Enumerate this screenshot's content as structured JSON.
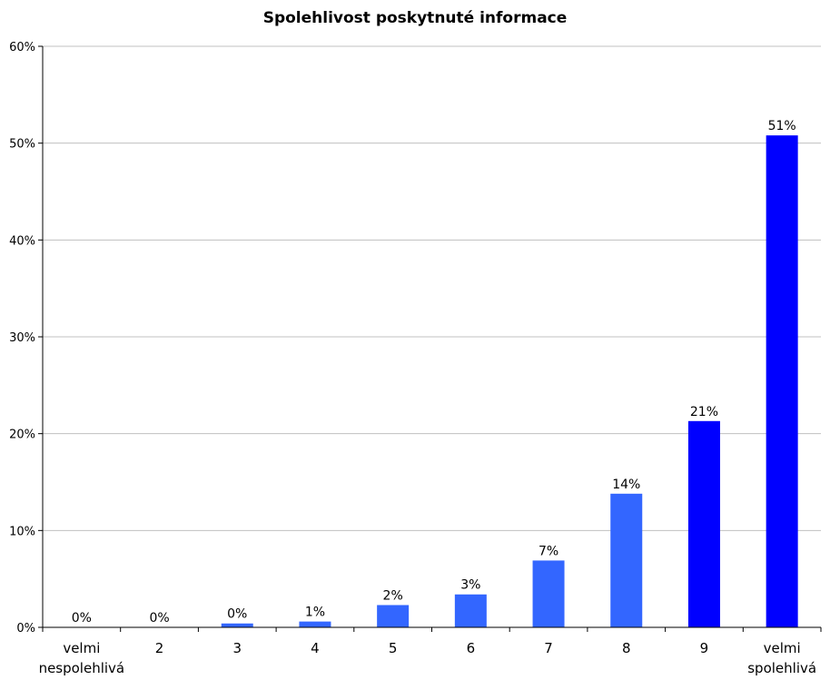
{
  "chart_data": {
    "type": "bar",
    "title": "Spolehlivost poskytnuté informace",
    "xlabel": "",
    "ylabel": "",
    "categories": [
      [
        "velmi",
        "nespolehlivá"
      ],
      [
        "2"
      ],
      [
        "3"
      ],
      [
        "4"
      ],
      [
        "5"
      ],
      [
        "6"
      ],
      [
        "7"
      ],
      [
        "8"
      ],
      [
        "9"
      ],
      [
        "velmi",
        "spolehlivá"
      ]
    ],
    "values": [
      0,
      0,
      0.4,
      0.6,
      2.3,
      3.4,
      6.9,
      13.8,
      21.3,
      50.8
    ],
    "data_labels": [
      "0%",
      "0%",
      "0%",
      "1%",
      "2%",
      "3%",
      "7%",
      "14%",
      "21%",
      "51%"
    ],
    "ylim": [
      0,
      60
    ],
    "yticks": [
      0,
      10,
      20,
      30,
      40,
      50,
      60
    ],
    "ytick_labels": [
      "0%",
      "10%",
      "20%",
      "30%",
      "40%",
      "50%",
      "60%"
    ],
    "grid": true,
    "colors": [
      "#3366FF",
      "#3366FF",
      "#3366FF",
      "#3366FF",
      "#3366FF",
      "#3366FF",
      "#3366FF",
      "#3366FF",
      "#0000FF",
      "#0000FF"
    ]
  }
}
